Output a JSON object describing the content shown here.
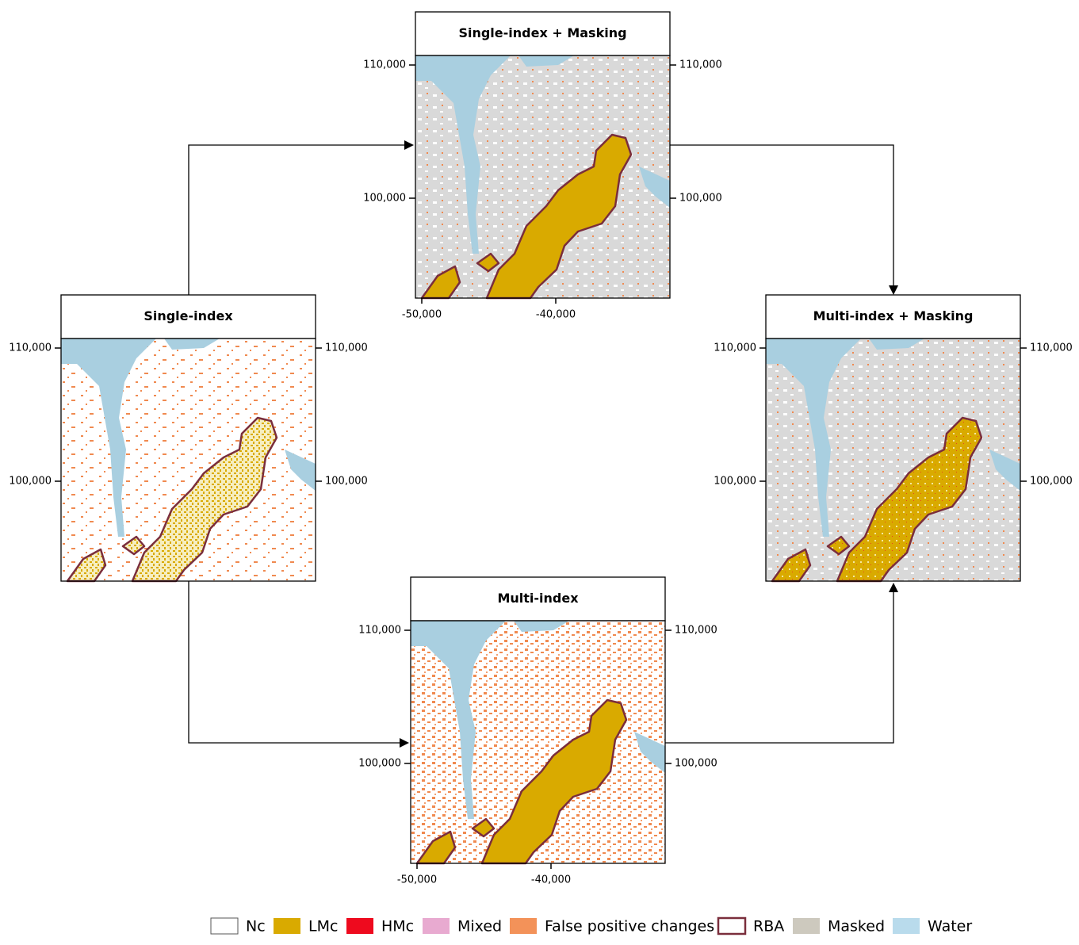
{
  "panels": [
    {
      "title": "Single-index + Masking",
      "y_ticks_left": [
        "110,000",
        "100,000"
      ],
      "y_ticks_right": [
        "110,000",
        "100,000"
      ],
      "x_ticks": [
        "-50,000",
        "-40,000"
      ]
    },
    {
      "title": "Single-index",
      "y_ticks_left": [
        "110,000",
        "100,000"
      ],
      "y_ticks_right": [
        "110,000",
        "100,000"
      ]
    },
    {
      "title": "Multi-index + Masking",
      "y_ticks_left": [
        "110,000",
        "100,000"
      ],
      "y_ticks_right": [
        "110,000",
        "100,000"
      ]
    },
    {
      "title": "Multi-index",
      "y_ticks_left": [
        "110,000",
        "100,000"
      ],
      "y_ticks_right": [
        "110,000",
        "100,000"
      ],
      "x_ticks": [
        "-50,000",
        "-40,000"
      ]
    }
  ],
  "legend": [
    "Nc",
    "LMc",
    "HMc",
    "Mixed",
    "False positive changes",
    "RBA",
    "Masked",
    "Water"
  ]
}
